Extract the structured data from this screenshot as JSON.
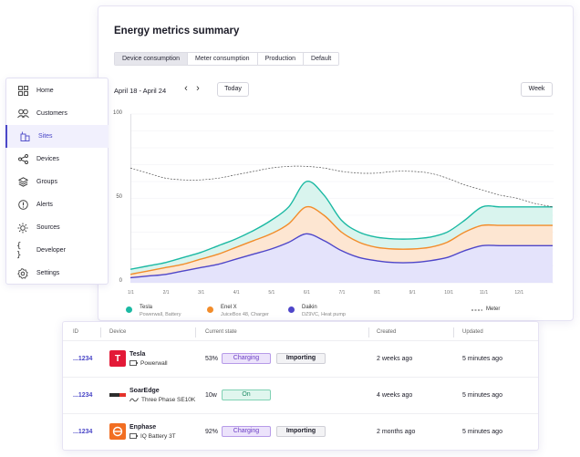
{
  "summary": {
    "title": "Energy metrics summary",
    "tabs": [
      "Device consumption",
      "Meter consumption",
      "Production",
      "Default"
    ],
    "date_range": "April 18 - April 24",
    "today_label": "Today",
    "period_label": "Week"
  },
  "chart_data": {
    "type": "area",
    "yticks": [
      "100",
      "50",
      "0"
    ],
    "ylim": [
      0,
      100
    ],
    "x_labels": [
      "1/1",
      "2/1",
      "3/1",
      "4/1",
      "5/1",
      "6/1",
      "7/1",
      "8/1",
      "9/1",
      "10/1",
      "11/1",
      "12/1"
    ],
    "x": [
      0,
      0.5,
      1,
      1.5,
      2,
      2.5,
      3,
      3.5,
      4,
      4.5,
      5,
      5.5,
      6,
      6.5,
      7,
      7.5,
      8,
      8.5,
      9,
      9.5,
      10,
      10.5,
      11,
      11.5,
      12
    ],
    "series": [
      {
        "name": "Daikin",
        "sub": "DZ9VC, Heat pump",
        "color": "#4e46c9",
        "fill": "#e4e3fb",
        "values": [
          3,
          4,
          5,
          7,
          9,
          11,
          14,
          17,
          20,
          24,
          29,
          25,
          19,
          15,
          13,
          12,
          12,
          13,
          15,
          19,
          22,
          22,
          22,
          22,
          22
        ]
      },
      {
        "name": "Enel X",
        "sub": "JuiceBox 48, Charger",
        "color": "#f28c2a",
        "fill": "#fde6d2",
        "values": [
          5,
          7,
          9,
          11,
          14,
          17,
          21,
          25,
          29,
          35,
          45,
          40,
          30,
          24,
          21,
          20,
          20,
          21,
          24,
          30,
          34,
          34,
          34,
          34,
          34
        ]
      },
      {
        "name": "Tesla",
        "sub": "Powerwall, Battery",
        "color": "#1bb9a3",
        "fill": "#d9f4ee",
        "values": [
          8,
          10,
          12,
          15,
          18,
          22,
          26,
          31,
          37,
          45,
          60,
          52,
          37,
          30,
          27,
          26,
          26,
          27,
          30,
          37,
          45,
          45,
          45,
          45,
          45
        ]
      }
    ],
    "meter": {
      "name": "Meter",
      "color": "#555555",
      "values": [
        68,
        65,
        62,
        61,
        61,
        62,
        64,
        66,
        68,
        69,
        69,
        68,
        66,
        65,
        65,
        66,
        66,
        65,
        62,
        58,
        55,
        52,
        50,
        47,
        45
      ]
    },
    "legend_position": "bottom",
    "grid": true
  },
  "sidebar": {
    "items": [
      {
        "label": "Home",
        "icon": "home-icon"
      },
      {
        "label": "Customers",
        "icon": "customers-icon"
      },
      {
        "label": "Sites",
        "icon": "sites-icon"
      },
      {
        "label": "Devices",
        "icon": "devices-icon"
      },
      {
        "label": "Groups",
        "icon": "groups-icon"
      },
      {
        "label": "Alerts",
        "icon": "alerts-icon"
      },
      {
        "label": "Sources",
        "icon": "sources-icon"
      },
      {
        "label": "Developer",
        "icon": "developer-icon"
      },
      {
        "label": "Settings",
        "icon": "settings-icon"
      }
    ],
    "active": "Sites"
  },
  "table": {
    "columns": [
      "ID",
      "Device",
      "Current state",
      "Created",
      "Updated"
    ],
    "rows": [
      {
        "id": "...1234",
        "name": "Tesla",
        "model": "Powerwall",
        "model_icon": "battery-icon",
        "pct": "53%",
        "state": "Charging",
        "action": "Importing",
        "created": "2 weeks ago",
        "updated": "5 minutes ago"
      },
      {
        "id": "...1234",
        "name": "SoarEdge",
        "model": "Three Phase SE10K",
        "model_icon": "wave-icon",
        "pct": "10w",
        "state": "On",
        "action": "",
        "created": "4 weeks ago",
        "updated": "5 minutes ago"
      },
      {
        "id": "...1234",
        "name": "Enphase",
        "model": "IQ Battery 3T",
        "model_icon": "battery-icon",
        "pct": "92%",
        "state": "Charging",
        "action": "Importing",
        "created": "2 months ago",
        "updated": "5 minutes ago"
      }
    ]
  }
}
